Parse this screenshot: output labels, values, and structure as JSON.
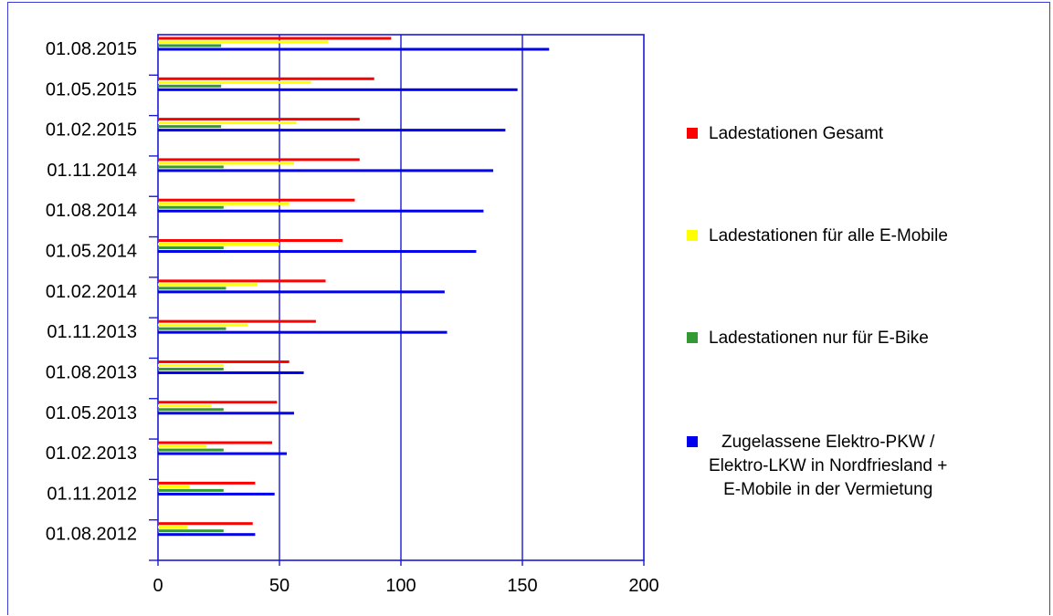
{
  "chart_data": {
    "type": "bar",
    "orientation": "horizontal",
    "categories": [
      "01.08.2015",
      "01.05.2015",
      "01.02.2015",
      "01.11.2014",
      "01.08.2014",
      "01.05.2014",
      "01.02.2014",
      "01.11.2013",
      "01.08.2013",
      "01.05.2013",
      "01.02.2013",
      "01.11.2012",
      "01.08.2012"
    ],
    "series": [
      {
        "name": "Ladestationen Gesamt",
        "color": "#ff0000",
        "values": [
          96,
          89,
          83,
          83,
          81,
          76,
          69,
          65,
          54,
          49,
          47,
          40,
          39
        ]
      },
      {
        "name": "Ladestationen für alle E-Mobile",
        "color": "#ffff00",
        "values": [
          70,
          63,
          57,
          56,
          54,
          50,
          41,
          37,
          27,
          22,
          20,
          13,
          12
        ]
      },
      {
        "name": "Ladestationen nur für E-Bike",
        "color": "#339933",
        "values": [
          26,
          26,
          26,
          27,
          27,
          27,
          28,
          28,
          27,
          27,
          27,
          27,
          27
        ]
      },
      {
        "name": "Zugelassene Elektro-PKW / Elektro-LKW in Nordfriesland + E-Mobile in der Vermietung",
        "color": "#0000ee",
        "values": [
          161,
          148,
          143,
          138,
          134,
          131,
          118,
          119,
          60,
          56,
          53,
          48,
          40
        ]
      }
    ],
    "xlim": [
      0,
      200
    ],
    "xticks": [
      "0",
      "50",
      "100",
      "150",
      "200"
    ],
    "grid": true,
    "legend_position": "right"
  },
  "legend": {
    "items": [
      {
        "color": "#ff0000",
        "lines": [
          "Ladestationen Gesamt"
        ]
      },
      {
        "color": "#ffff00",
        "lines": [
          "Ladestationen für alle E-Mobile"
        ]
      },
      {
        "color": "#339933",
        "lines": [
          "Ladestationen nur für E-Bike"
        ]
      },
      {
        "color": "#0000ee",
        "lines": [
          "Zugelassene Elektro-PKW /",
          "Elektro-LKW in Nordfriesland +",
          "E-Mobile in der Vermietung"
        ]
      }
    ]
  }
}
